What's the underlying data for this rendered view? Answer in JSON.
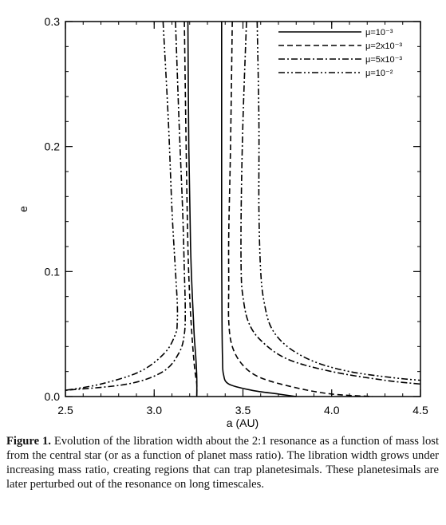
{
  "chart_data": {
    "type": "line",
    "xlabel": "a (AU)",
    "ylabel": "e",
    "xlim": [
      2.5,
      4.5
    ],
    "ylim": [
      0.0,
      0.3
    ],
    "xticks": [
      "2.5",
      "3.0",
      "3.5",
      "4.0",
      "4.5"
    ],
    "yticks": [
      "0.0",
      "0.1",
      "0.2",
      "0.3"
    ],
    "legend_position": "top-right",
    "series": [
      {
        "name": "μ=10⁻³",
        "style": "solid",
        "left": [
          [
            3.19,
            0.3
          ],
          [
            3.195,
            0.2
          ],
          [
            3.205,
            0.12
          ],
          [
            3.215,
            0.08
          ],
          [
            3.225,
            0.05
          ],
          [
            3.235,
            0.03
          ],
          [
            3.24,
            0.015
          ],
          [
            3.24,
            0.0
          ]
        ],
        "right": [
          [
            3.38,
            0.3
          ],
          [
            3.38,
            0.2
          ],
          [
            3.38,
            0.12
          ],
          [
            3.382,
            0.06
          ],
          [
            3.385,
            0.03
          ],
          [
            3.39,
            0.018
          ],
          [
            3.42,
            0.01
          ],
          [
            3.55,
            0.005
          ],
          [
            3.7,
            0.002
          ],
          [
            3.8,
            0.0
          ]
        ]
      },
      {
        "name": "μ=2x10⁻³",
        "style": "dashed",
        "left": [
          [
            3.17,
            0.3
          ],
          [
            3.18,
            0.2
          ],
          [
            3.19,
            0.12
          ],
          [
            3.2,
            0.08
          ],
          [
            3.21,
            0.055
          ],
          [
            3.22,
            0.035
          ],
          [
            3.23,
            0.02
          ],
          [
            3.24,
            0.01
          ],
          [
            3.24,
            0.0
          ]
        ],
        "right": [
          [
            3.44,
            0.3
          ],
          [
            3.43,
            0.2
          ],
          [
            3.42,
            0.13
          ],
          [
            3.42,
            0.09
          ],
          [
            3.42,
            0.06
          ],
          [
            3.44,
            0.04
          ],
          [
            3.5,
            0.025
          ],
          [
            3.6,
            0.015
          ],
          [
            3.8,
            0.007
          ],
          [
            4.0,
            0.002
          ],
          [
            4.23,
            0.0
          ]
        ]
      },
      {
        "name": "μ=5x10⁻³",
        "style": "dashdot",
        "left": [
          [
            3.12,
            0.3
          ],
          [
            3.14,
            0.22
          ],
          [
            3.16,
            0.15
          ],
          [
            3.17,
            0.1
          ],
          [
            3.175,
            0.07
          ],
          [
            3.17,
            0.05
          ],
          [
            3.14,
            0.035
          ],
          [
            3.05,
            0.02
          ],
          [
            2.85,
            0.01
          ],
          [
            2.5,
            0.005
          ]
        ],
        "right": [
          [
            3.52,
            0.3
          ],
          [
            3.5,
            0.22
          ],
          [
            3.49,
            0.15
          ],
          [
            3.49,
            0.1
          ],
          [
            3.5,
            0.08
          ],
          [
            3.53,
            0.06
          ],
          [
            3.6,
            0.045
          ],
          [
            3.75,
            0.03
          ],
          [
            4.0,
            0.02
          ],
          [
            4.3,
            0.013
          ],
          [
            4.5,
            0.01
          ]
        ]
      },
      {
        "name": "μ=10⁻²",
        "style": "dashdotdot",
        "left": [
          [
            3.05,
            0.3
          ],
          [
            3.08,
            0.22
          ],
          [
            3.1,
            0.15
          ],
          [
            3.12,
            0.1
          ],
          [
            3.13,
            0.075
          ],
          [
            3.13,
            0.06
          ],
          [
            3.12,
            0.05
          ],
          [
            3.06,
            0.035
          ],
          [
            2.92,
            0.02
          ],
          [
            2.7,
            0.01
          ],
          [
            2.5,
            0.005
          ]
        ],
        "right": [
          [
            3.58,
            0.3
          ],
          [
            3.59,
            0.22
          ],
          [
            3.59,
            0.15
          ],
          [
            3.6,
            0.1
          ],
          [
            3.62,
            0.075
          ],
          [
            3.66,
            0.055
          ],
          [
            3.75,
            0.04
          ],
          [
            3.9,
            0.028
          ],
          [
            4.1,
            0.02
          ],
          [
            4.35,
            0.015
          ],
          [
            4.5,
            0.013
          ]
        ]
      }
    ]
  },
  "caption": {
    "label": "Figure 1.",
    "text": " Evolution of the libration width about the 2:1 resonance as a function of mass lost from the central star (or as a function of planet mass ratio). The libration width grows under increasing mass ratio, creating regions that can trap planetesimals. These planetesimals are later perturbed out of the resonance on long timescales."
  }
}
